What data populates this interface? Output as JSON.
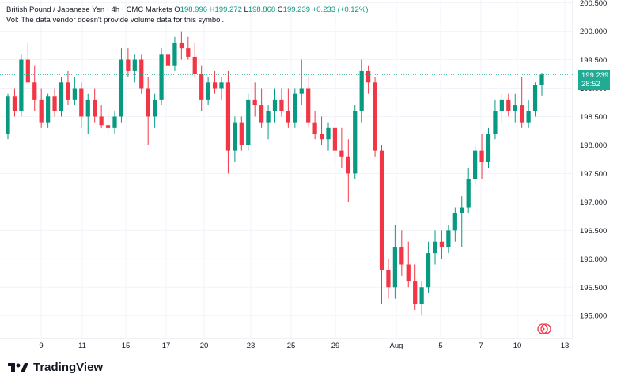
{
  "header": {
    "title": "British Pound / Japanese Yen · 4h · CMC Markets",
    "open_label": "O",
    "open": "198.996",
    "high_label": "H",
    "high": "199.272",
    "low_label": "L",
    "low": "198.868",
    "close_label": "C",
    "close": "199.239",
    "change": "+0.233 (+0.12%)",
    "volume_note": "Vol: The data vendor doesn't provide volume data for this symbol."
  },
  "price_badge": {
    "price": "199.239",
    "countdown": "28:52"
  },
  "branding": {
    "logo_text": "TradingView"
  },
  "colors": {
    "up": "#089981",
    "down": "#f23645",
    "grid": "#f0f3fa",
    "badge": "#22ab94"
  },
  "chart_data": {
    "type": "candlestick",
    "symbol": "GBPJPY",
    "interval": "4h",
    "ylim": [
      194.6,
      200.55
    ],
    "y_ticks": [
      "195.000",
      "195.500",
      "196.000",
      "196.500",
      "197.000",
      "197.500",
      "198.000",
      "198.500",
      "199.000",
      "199.500",
      "200.000",
      "200.500"
    ],
    "x_ticks": [
      "9",
      "11",
      "15",
      "17",
      "20",
      "23",
      "25",
      "29",
      "Aug",
      "5",
      "7",
      "10",
      "13"
    ],
    "last_price": 199.239,
    "candles": [
      [
        198.2,
        198.9,
        198.1,
        198.85
      ],
      [
        198.85,
        199.0,
        198.5,
        198.6
      ],
      [
        198.6,
        199.6,
        198.5,
        199.5
      ],
      [
        199.5,
        199.8,
        199.1,
        199.1
      ],
      [
        199.1,
        199.4,
        198.6,
        198.8
      ],
      [
        198.8,
        199.0,
        198.3,
        198.4
      ],
      [
        198.4,
        198.9,
        198.3,
        198.85
      ],
      [
        198.85,
        199.0,
        198.5,
        198.6
      ],
      [
        198.6,
        199.2,
        198.5,
        199.1
      ],
      [
        199.1,
        199.3,
        198.7,
        198.8
      ],
      [
        198.8,
        199.2,
        198.7,
        199.0
      ],
      [
        199.0,
        199.1,
        198.3,
        198.5
      ],
      [
        198.5,
        198.9,
        198.2,
        198.8
      ],
      [
        198.8,
        199.0,
        198.4,
        198.5
      ],
      [
        198.5,
        198.7,
        198.3,
        198.35
      ],
      [
        198.35,
        198.6,
        198.2,
        198.3
      ],
      [
        198.3,
        198.6,
        198.2,
        198.5
      ],
      [
        198.5,
        199.7,
        198.4,
        199.5
      ],
      [
        199.5,
        199.7,
        199.2,
        199.3
      ],
      [
        199.3,
        199.6,
        199.1,
        199.5
      ],
      [
        199.5,
        199.6,
        198.9,
        199.0
      ],
      [
        199.0,
        199.2,
        198.0,
        198.5
      ],
      [
        198.5,
        198.9,
        198.3,
        198.8
      ],
      [
        198.8,
        199.7,
        198.7,
        199.6
      ],
      [
        199.6,
        199.9,
        199.3,
        199.4
      ],
      [
        199.4,
        199.9,
        199.3,
        199.8
      ],
      [
        199.8,
        200.0,
        199.5,
        199.7
      ],
      [
        199.7,
        199.9,
        199.5,
        199.55
      ],
      [
        199.55,
        199.8,
        199.2,
        199.25
      ],
      [
        199.25,
        199.4,
        198.6,
        198.8
      ],
      [
        198.8,
        199.2,
        198.7,
        199.1
      ],
      [
        199.1,
        199.3,
        198.9,
        199.0
      ],
      [
        199.0,
        199.2,
        198.8,
        199.1
      ],
      [
        199.1,
        199.3,
        197.5,
        197.9
      ],
      [
        197.9,
        198.5,
        197.7,
        198.4
      ],
      [
        198.4,
        198.5,
        197.9,
        198.0
      ],
      [
        198.0,
        198.9,
        197.9,
        198.8
      ],
      [
        198.8,
        199.1,
        198.5,
        198.7
      ],
      [
        198.7,
        199.0,
        198.3,
        198.4
      ],
      [
        198.4,
        198.7,
        198.1,
        198.6
      ],
      [
        198.6,
        199.0,
        198.4,
        198.8
      ],
      [
        198.8,
        199.0,
        198.5,
        198.6
      ],
      [
        198.6,
        199.0,
        198.3,
        198.4
      ],
      [
        198.4,
        199.0,
        198.3,
        198.9
      ],
      [
        198.9,
        199.5,
        198.7,
        199.0
      ],
      [
        199.0,
        199.2,
        198.3,
        198.4
      ],
      [
        198.4,
        198.6,
        198.1,
        198.2
      ],
      [
        198.2,
        198.5,
        198.0,
        198.1
      ],
      [
        198.1,
        198.4,
        197.9,
        198.3
      ],
      [
        198.3,
        198.5,
        197.7,
        197.9
      ],
      [
        197.9,
        198.3,
        197.6,
        197.8
      ],
      [
        197.8,
        198.1,
        197.0,
        197.5
      ],
      [
        197.5,
        198.7,
        197.4,
        198.6
      ],
      [
        198.6,
        199.5,
        198.4,
        199.3
      ],
      [
        199.3,
        199.4,
        198.9,
        199.1
      ],
      [
        199.1,
        199.2,
        197.8,
        197.9
      ],
      [
        197.9,
        198.0,
        195.2,
        195.8
      ],
      [
        195.8,
        196.0,
        195.3,
        195.5
      ],
      [
        195.5,
        196.6,
        195.3,
        196.2
      ],
      [
        196.2,
        196.5,
        195.7,
        195.9
      ],
      [
        195.9,
        196.3,
        195.5,
        195.6
      ],
      [
        195.6,
        195.9,
        195.1,
        195.2
      ],
      [
        195.2,
        195.6,
        195.0,
        195.5
      ],
      [
        195.5,
        196.3,
        195.4,
        196.1
      ],
      [
        196.1,
        196.5,
        195.9,
        196.3
      ],
      [
        196.3,
        196.5,
        196.0,
        196.2
      ],
      [
        196.2,
        196.6,
        196.1,
        196.5
      ],
      [
        196.5,
        196.9,
        196.3,
        196.8
      ],
      [
        196.8,
        197.1,
        196.2,
        196.9
      ],
      [
        196.9,
        197.6,
        196.8,
        197.4
      ],
      [
        197.4,
        198.0,
        197.3,
        197.9
      ],
      [
        197.9,
        198.2,
        197.4,
        197.7
      ],
      [
        197.7,
        198.3,
        197.6,
        198.2
      ],
      [
        198.2,
        198.8,
        198.1,
        198.6
      ],
      [
        198.6,
        198.9,
        198.4,
        198.8
      ],
      [
        198.8,
        198.9,
        198.5,
        198.6
      ],
      [
        198.6,
        198.9,
        198.4,
        198.7
      ],
      [
        198.7,
        199.2,
        198.3,
        198.4
      ],
      [
        198.4,
        198.8,
        198.3,
        198.6
      ],
      [
        198.6,
        199.1,
        198.5,
        199.05
      ],
      [
        199.05,
        199.27,
        198.87,
        199.239
      ]
    ]
  }
}
